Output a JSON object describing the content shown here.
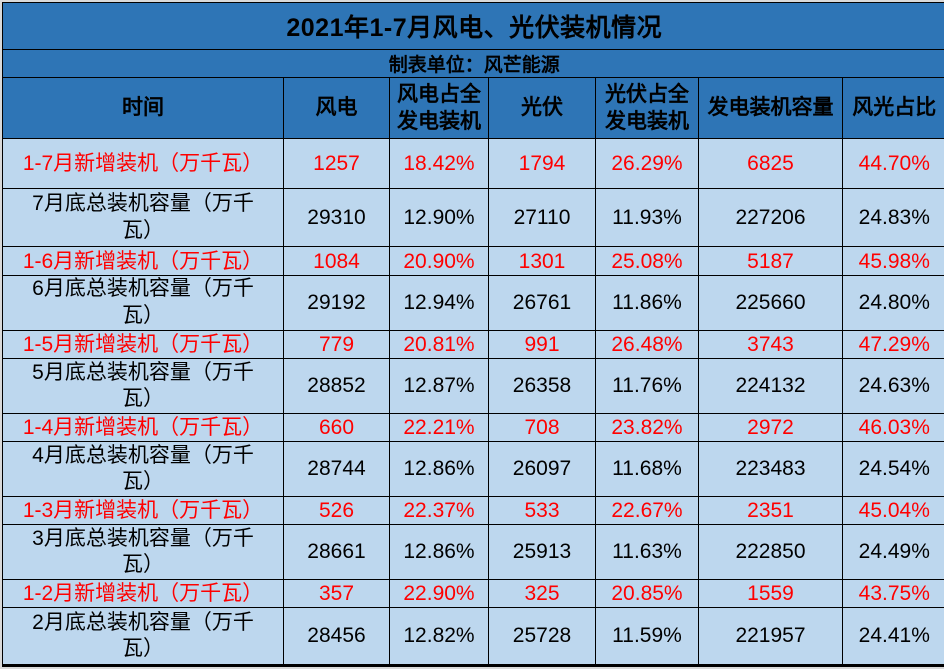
{
  "colors": {
    "header_bg": "#2E75B6",
    "cell_bg": "#BDD7EE",
    "highlight_text": "#FF0000",
    "normal_text": "#000000",
    "grid_border": "#000000"
  },
  "chart_data": {
    "type": "table",
    "title": "2021年1-7月风电、光伏装机情况",
    "subtitle": "制表单位：风芒能源",
    "columns": [
      "时间",
      "风电",
      "风电占全\n发电装机",
      "光伏",
      "光伏占全\n发电装机",
      "发电装机容量",
      "风光占比"
    ],
    "unit_note": "万千瓦",
    "rows": [
      {
        "kind": "new",
        "period": "1-7月新增装机（万千瓦）",
        "values": [
          "1257",
          "18.42%",
          "1794",
          "26.29%",
          "6825",
          "44.70%"
        ]
      },
      {
        "kind": "total",
        "period": "7月底总装机容量（万千\n瓦）",
        "values": [
          "29310",
          "12.90%",
          "27110",
          "11.93%",
          "227206",
          "24.83%"
        ]
      },
      {
        "kind": "new",
        "period": "1-6月新增装机（万千瓦）",
        "values": [
          "1084",
          "20.90%",
          "1301",
          "25.08%",
          "5187",
          "45.98%"
        ]
      },
      {
        "kind": "total",
        "period": "6月底总装机容量（万千\n瓦）",
        "values": [
          "29192",
          "12.94%",
          "26761",
          "11.86%",
          "225660",
          "24.80%"
        ]
      },
      {
        "kind": "new",
        "period": "1-5月新增装机（万千瓦）",
        "values": [
          "779",
          "20.81%",
          "991",
          "26.48%",
          "3743",
          "47.29%"
        ]
      },
      {
        "kind": "total",
        "period": "5月底总装机容量（万千\n瓦）",
        "values": [
          "28852",
          "12.87%",
          "26358",
          "11.76%",
          "224132",
          "24.63%"
        ]
      },
      {
        "kind": "new",
        "period": "1-4月新增装机（万千瓦）",
        "values": [
          "660",
          "22.21%",
          "708",
          "23.82%",
          "2972",
          "46.03%"
        ]
      },
      {
        "kind": "total",
        "period": "4月底总装机容量（万千\n瓦）",
        "values": [
          "28744",
          "12.86%",
          "26097",
          "11.68%",
          "223483",
          "24.54%"
        ]
      },
      {
        "kind": "new",
        "period": "1-3月新增装机（万千瓦）",
        "values": [
          "526",
          "22.37%",
          "533",
          "22.67%",
          "2351",
          "45.04%"
        ]
      },
      {
        "kind": "total",
        "period": "3月底总装机容量（万千\n瓦）",
        "values": [
          "28661",
          "12.86%",
          "25913",
          "11.63%",
          "222850",
          "24.49%"
        ]
      },
      {
        "kind": "new",
        "period": "1-2月新增装机（万千瓦）",
        "values": [
          "357",
          "22.90%",
          "325",
          "20.85%",
          "1559",
          "43.75%"
        ]
      },
      {
        "kind": "total",
        "period": "2月底总装机容量（万千\n瓦）",
        "values": [
          "28456",
          "12.82%",
          "25728",
          "11.59%",
          "221957",
          "24.41%"
        ]
      }
    ]
  }
}
